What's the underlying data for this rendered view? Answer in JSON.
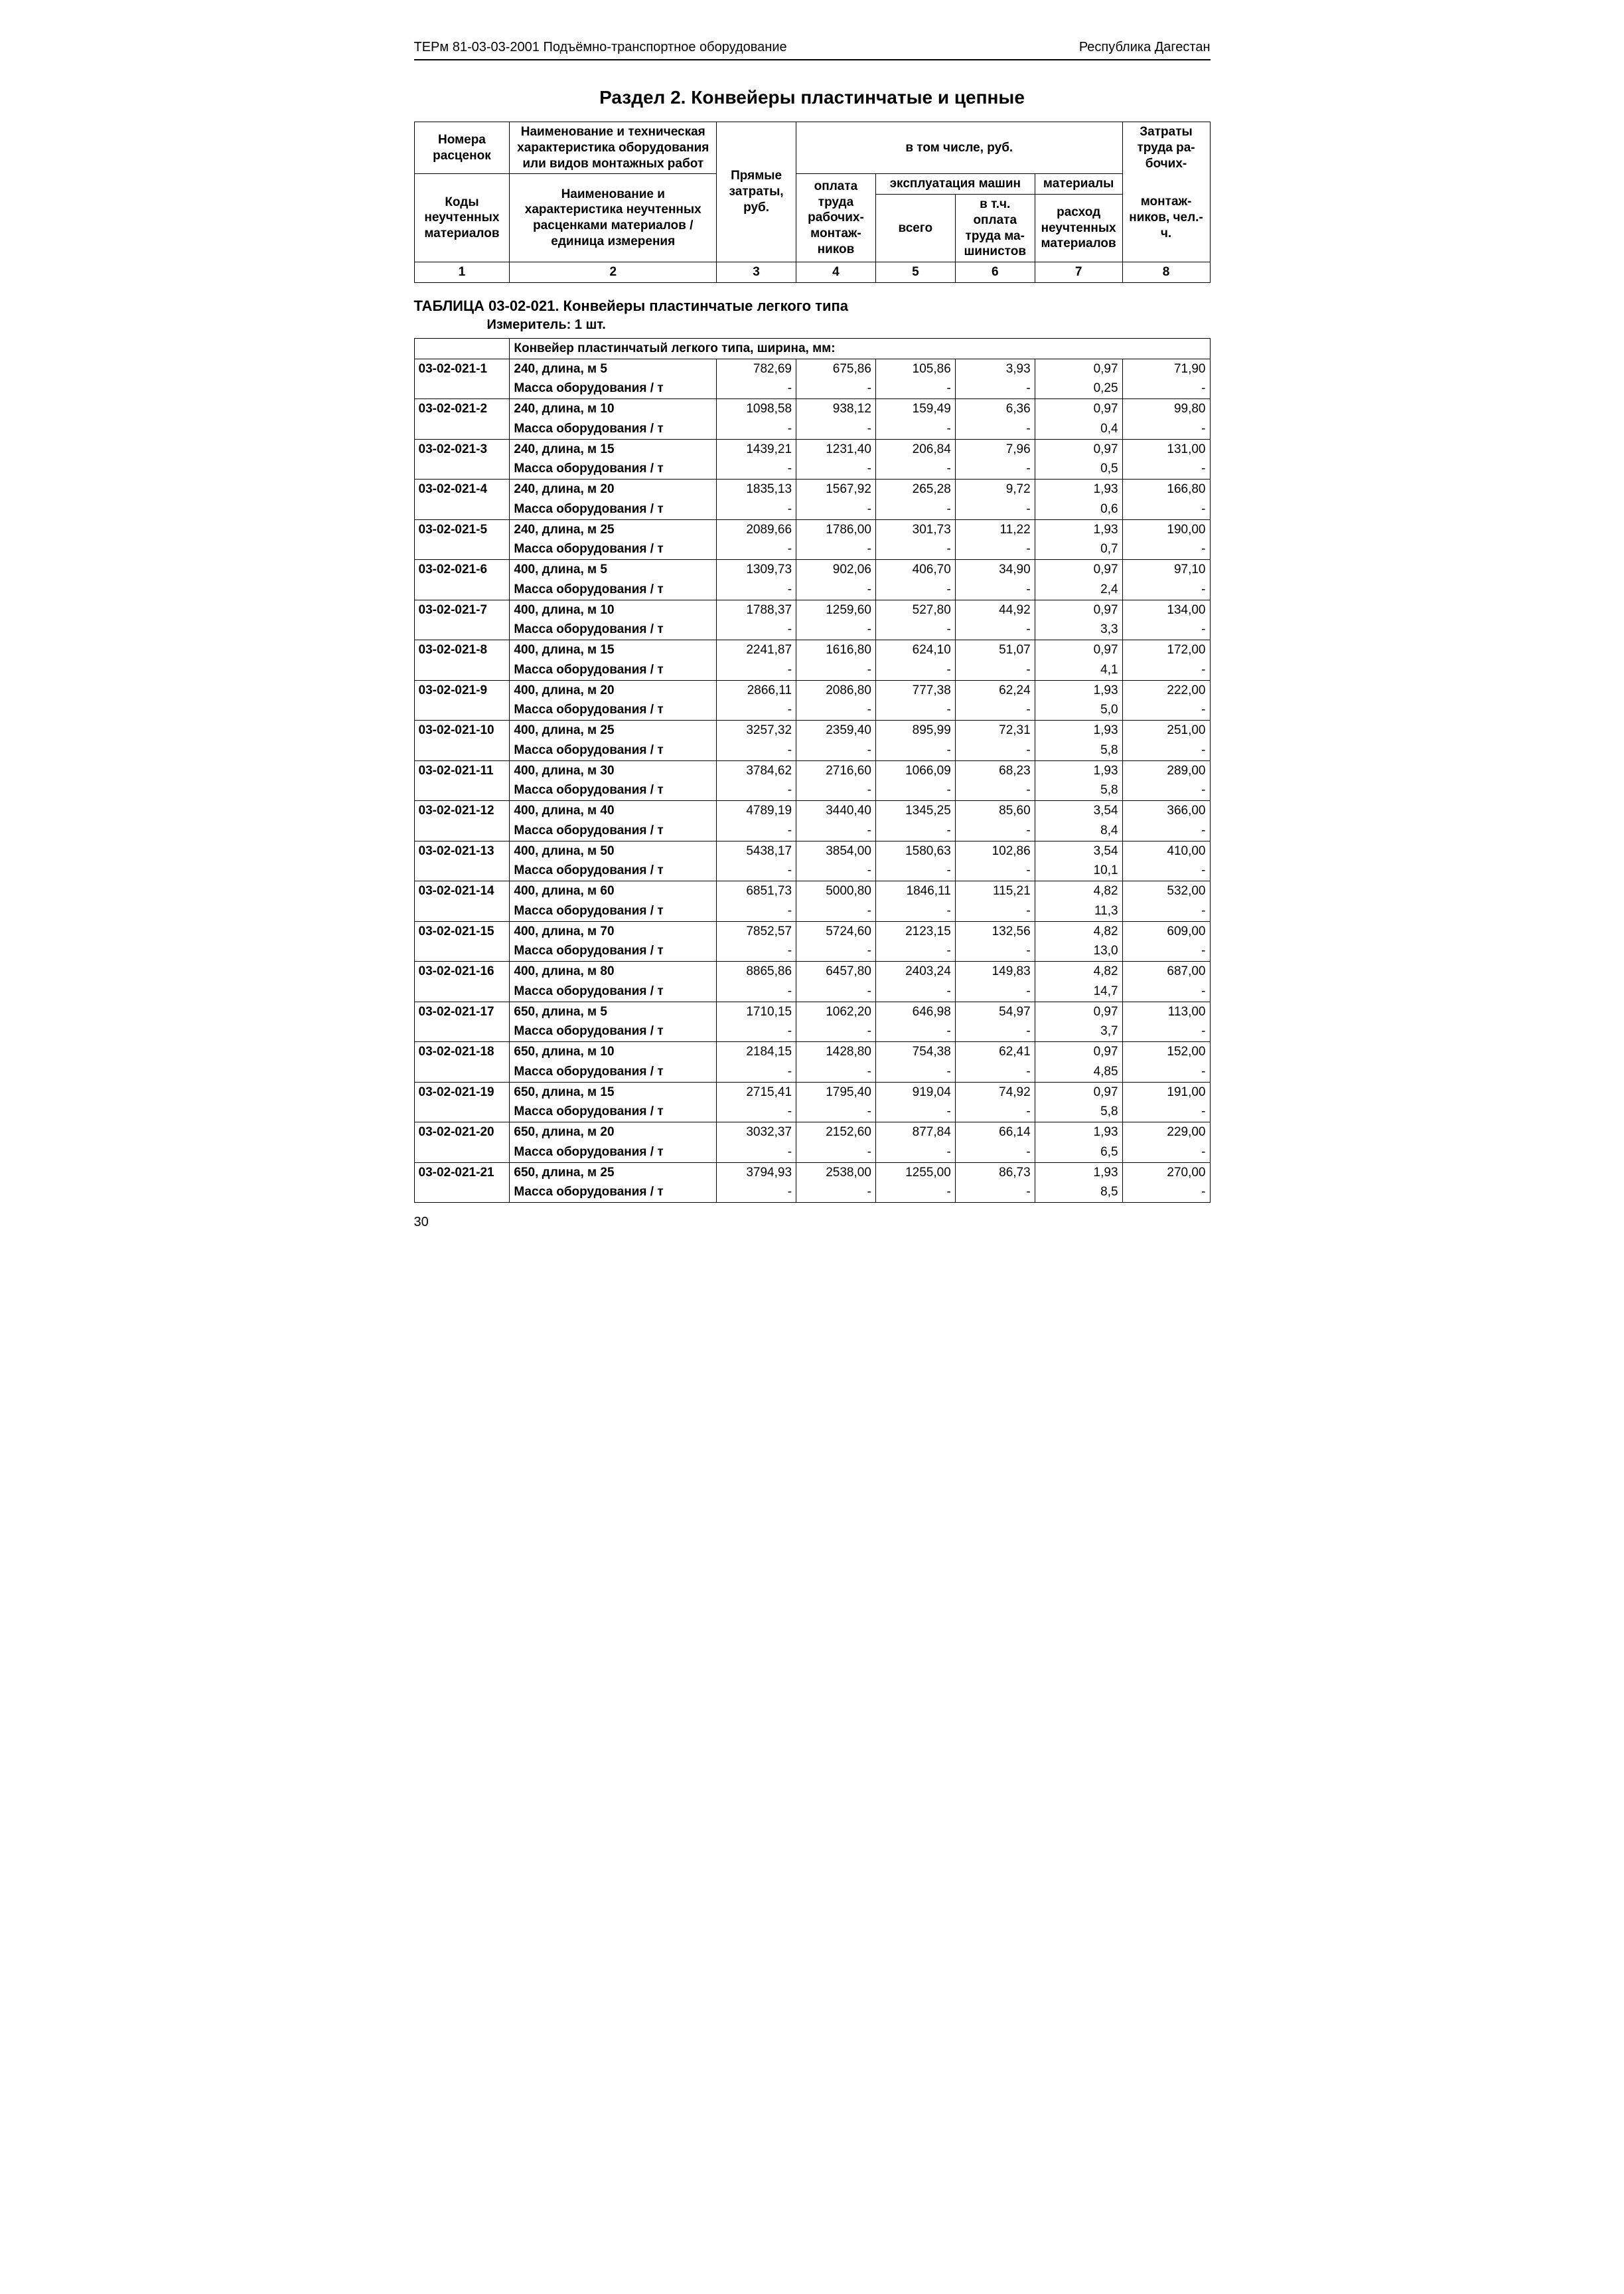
{
  "doc_header_left": "ТЕРм 81-03-03-2001 Подъёмно-транспортное оборудование",
  "doc_header_right": "Республика Дагестан",
  "section_title": "Раздел 2. Конвейеры пластинчатые и цепные",
  "header": {
    "h1a": "Номера расценок",
    "h1b": "Коды неучтенных материалов",
    "h2a": "Наименование и техническая характеристика оборудования или видов монтажных работ",
    "h2b": "Наименование и характеристика неучтенных расценками материалов / единица измерения",
    "h3": "Прямые затраты, руб.",
    "h4top": "в том числе, руб.",
    "h4a": "оплата труда рабочих-монтаж­ников",
    "h5top": "эксплуатация машин",
    "h5a": "всего",
    "h5b": "в т.ч. оплата труда ма­шинистов",
    "h6top": "материалы",
    "h6": "расход неучтенных материалов",
    "h7top": "Затраты труда ра­бочих-",
    "h7": "монтаж­ников, чел.-ч."
  },
  "colnums": [
    "1",
    "2",
    "3",
    "4",
    "5",
    "6",
    "7",
    "8"
  ],
  "table_title": "ТАБЛИЦА 03-02-021. Конвейеры пластинчатые легкого типа",
  "measure": "Измеритель: 1 шт.",
  "group_name": "Конвейер пластинчатый легкого типа, ширина, мм:",
  "mass_label": "Масса оборудования / т",
  "rows": [
    {
      "code": "03-02-021-1",
      "name": "240, длина, м 5",
      "c3": "782,69",
      "c4": "675,86",
      "c5": "105,86",
      "c6": "3,93",
      "c7": "0,97",
      "c8": "71,90",
      "m7": "0,25"
    },
    {
      "code": "03-02-021-2",
      "name": "240, длина, м 10",
      "c3": "1098,58",
      "c4": "938,12",
      "c5": "159,49",
      "c6": "6,36",
      "c7": "0,97",
      "c8": "99,80",
      "m7": "0,4"
    },
    {
      "code": "03-02-021-3",
      "name": "240, длина, м 15",
      "c3": "1439,21",
      "c4": "1231,40",
      "c5": "206,84",
      "c6": "7,96",
      "c7": "0,97",
      "c8": "131,00",
      "m7": "0,5"
    },
    {
      "code": "03-02-021-4",
      "name": "240, длина, м 20",
      "c3": "1835,13",
      "c4": "1567,92",
      "c5": "265,28",
      "c6": "9,72",
      "c7": "1,93",
      "c8": "166,80",
      "m7": "0,6"
    },
    {
      "code": "03-02-021-5",
      "name": "240, длина, м 25",
      "c3": "2089,66",
      "c4": "1786,00",
      "c5": "301,73",
      "c6": "11,22",
      "c7": "1,93",
      "c8": "190,00",
      "m7": "0,7"
    },
    {
      "code": "03-02-021-6",
      "name": "400, длина, м 5",
      "c3": "1309,73",
      "c4": "902,06",
      "c5": "406,70",
      "c6": "34,90",
      "c7": "0,97",
      "c8": "97,10",
      "m7": "2,4"
    },
    {
      "code": "03-02-021-7",
      "name": "400, длина, м 10",
      "c3": "1788,37",
      "c4": "1259,60",
      "c5": "527,80",
      "c6": "44,92",
      "c7": "0,97",
      "c8": "134,00",
      "m7": "3,3"
    },
    {
      "code": "03-02-021-8",
      "name": "400, длина, м 15",
      "c3": "2241,87",
      "c4": "1616,80",
      "c5": "624,10",
      "c6": "51,07",
      "c7": "0,97",
      "c8": "172,00",
      "m7": "4,1"
    },
    {
      "code": "03-02-021-9",
      "name": "400, длина, м 20",
      "c3": "2866,11",
      "c4": "2086,80",
      "c5": "777,38",
      "c6": "62,24",
      "c7": "1,93",
      "c8": "222,00",
      "m7": "5,0"
    },
    {
      "code": "03-02-021-10",
      "name": "400, длина, м 25",
      "c3": "3257,32",
      "c4": "2359,40",
      "c5": "895,99",
      "c6": "72,31",
      "c7": "1,93",
      "c8": "251,00",
      "m7": "5,8"
    },
    {
      "code": "03-02-021-11",
      "name": "400, длина, м 30",
      "c3": "3784,62",
      "c4": "2716,60",
      "c5": "1066,09",
      "c6": "68,23",
      "c7": "1,93",
      "c8": "289,00",
      "m7": "5,8"
    },
    {
      "code": "03-02-021-12",
      "name": "400, длина, м 40",
      "c3": "4789,19",
      "c4": "3440,40",
      "c5": "1345,25",
      "c6": "85,60",
      "c7": "3,54",
      "c8": "366,00",
      "m7": "8,4"
    },
    {
      "code": "03-02-021-13",
      "name": "400, длина, м 50",
      "c3": "5438,17",
      "c4": "3854,00",
      "c5": "1580,63",
      "c6": "102,86",
      "c7": "3,54",
      "c8": "410,00",
      "m7": "10,1"
    },
    {
      "code": "03-02-021-14",
      "name": "400, длина, м 60",
      "c3": "6851,73",
      "c4": "5000,80",
      "c5": "1846,11",
      "c6": "115,21",
      "c7": "4,82",
      "c8": "532,00",
      "m7": "11,3"
    },
    {
      "code": "03-02-021-15",
      "name": "400, длина, м 70",
      "c3": "7852,57",
      "c4": "5724,60",
      "c5": "2123,15",
      "c6": "132,56",
      "c7": "4,82",
      "c8": "609,00",
      "m7": "13,0"
    },
    {
      "code": "03-02-021-16",
      "name": "400, длина, м 80",
      "c3": "8865,86",
      "c4": "6457,80",
      "c5": "2403,24",
      "c6": "149,83",
      "c7": "4,82",
      "c8": "687,00",
      "m7": "14,7"
    },
    {
      "code": "03-02-021-17",
      "name": "650, длина, м 5",
      "c3": "1710,15",
      "c4": "1062,20",
      "c5": "646,98",
      "c6": "54,97",
      "c7": "0,97",
      "c8": "113,00",
      "m7": "3,7"
    },
    {
      "code": "03-02-021-18",
      "name": "650, длина, м 10",
      "c3": "2184,15",
      "c4": "1428,80",
      "c5": "754,38",
      "c6": "62,41",
      "c7": "0,97",
      "c8": "152,00",
      "m7": "4,85"
    },
    {
      "code": "03-02-021-19",
      "name": "650, длина, м 15",
      "c3": "2715,41",
      "c4": "1795,40",
      "c5": "919,04",
      "c6": "74,92",
      "c7": "0,97",
      "c8": "191,00",
      "m7": "5,8"
    },
    {
      "code": "03-02-021-20",
      "name": "650, длина, м 20",
      "c3": "3032,37",
      "c4": "2152,60",
      "c5": "877,84",
      "c6": "66,14",
      "c7": "1,93",
      "c8": "229,00",
      "m7": "6,5"
    },
    {
      "code": "03-02-021-21",
      "name": "650, длина, м 25",
      "c3": "3794,93",
      "c4": "2538,00",
      "c5": "1255,00",
      "c6": "86,73",
      "c7": "1,93",
      "c8": "270,00",
      "m7": "8,5"
    }
  ],
  "page_number": "30",
  "colwidths": [
    "12%",
    "26%",
    "10%",
    "10%",
    "10%",
    "10%",
    "11%",
    "11%"
  ]
}
